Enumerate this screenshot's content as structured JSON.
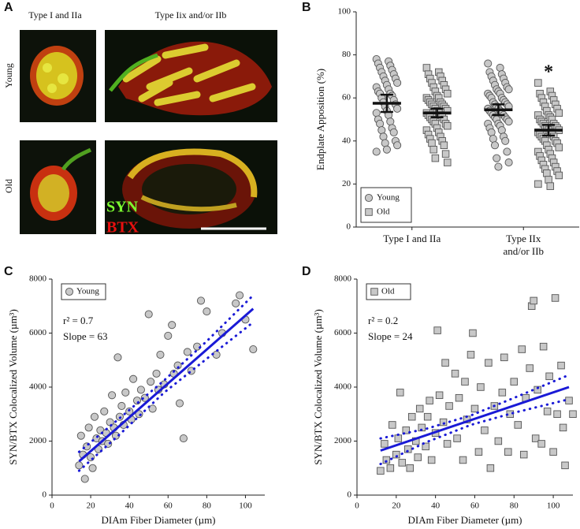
{
  "panel_a": {
    "label": "A",
    "column_titles": [
      "Type I and IIa",
      "Type Iix and/or IIb"
    ],
    "row_labels": [
      "Young",
      "Old"
    ],
    "stain_labels": [
      "SYN",
      "BTX"
    ]
  },
  "chart_data": [
    {
      "type": "strip",
      "panel_label": "B",
      "categories": [
        [
          "Type I and IIa"
        ],
        [
          "Type IIx",
          "and/or IIb"
        ]
      ],
      "ylabel": "Endplate Apposition (%)",
      "ylim": [
        0,
        100
      ],
      "yticks": [
        0,
        20,
        40,
        60,
        80,
        100
      ],
      "legend": "lower left",
      "series": [
        {
          "name": "Young",
          "marker": "circle",
          "color": "#c8c8c8",
          "values": [
            [
              78,
              77,
              76,
              75,
              74,
              73,
              72,
              71,
              70,
              69,
              68,
              67,
              66,
              65,
              64,
              63,
              62,
              62,
              61,
              60,
              59,
              58,
              57,
              56,
              55,
              54,
              53,
              52,
              50,
              49,
              48,
              46,
              45,
              44,
              42,
              40,
              39,
              38,
              36,
              35
            ],
            [
              76,
              74,
              72,
              71,
              70,
              69,
              68,
              67,
              66,
              65,
              64,
              64,
              63,
              62,
              62,
              61,
              60,
              60,
              59,
              58,
              58,
              57,
              57,
              56,
              56,
              55,
              55,
              54,
              54,
              53,
              53,
              52,
              52,
              51,
              51,
              50,
              50,
              49,
              48,
              48,
              47,
              46,
              45,
              44,
              42,
              41,
              40,
              38,
              35,
              32,
              30,
              28
            ]
          ],
          "mean": [
            57.5,
            54.5
          ],
          "error": [
            4,
            2.5
          ],
          "significance": [
            null,
            null
          ]
        },
        {
          "name": "Old",
          "marker": "square",
          "color": "#c8c8c8",
          "values": [
            [
              74,
              72,
              71,
              70,
              69,
              68,
              67,
              66,
              65,
              64,
              63,
              62,
              61,
              60,
              60,
              59,
              58,
              58,
              57,
              57,
              56,
              56,
              55,
              55,
              54,
              54,
              53,
              53,
              52,
              52,
              51,
              51,
              50,
              50,
              49,
              48,
              48,
              47,
              46,
              45,
              44,
              43,
              42,
              41,
              40,
              39,
              38,
              36,
              34,
              32,
              30
            ],
            [
              67,
              63,
              62,
              61,
              60,
              59,
              58,
              57,
              56,
              55,
              54,
              53,
              52,
              52,
              51,
              50,
              50,
              49,
              48,
              48,
              47,
              47,
              46,
              46,
              45,
              45,
              44,
              44,
              43,
              43,
              42,
              42,
              41,
              40,
              40,
              39,
              38,
              37,
              36,
              35,
              34,
              33,
              32,
              31,
              30,
              29,
              28,
              27,
              26,
              25,
              24,
              22,
              20,
              19
            ]
          ],
          "mean": [
            53,
            45
          ],
          "error": [
            2,
            2.5
          ],
          "significance": [
            null,
            "*"
          ]
        }
      ]
    },
    {
      "type": "scatter",
      "panel_label": "C",
      "xlabel": "DIAm Fiber Diameter (µm)",
      "ylabel": "SYN/BTX Colocalized Volume (µm³)",
      "xlim": [
        0,
        110
      ],
      "xticks": [
        0,
        20,
        40,
        60,
        80,
        100
      ],
      "ylim": [
        0,
        8000
      ],
      "yticks": [
        0,
        2000,
        4000,
        6000,
        8000
      ],
      "legend": "upper left",
      "annotations": [
        "r² = 0.7",
        "Slope = 63"
      ],
      "x": [
        14,
        15,
        16,
        17,
        18,
        19,
        20,
        21,
        22,
        23,
        24,
        25,
        26,
        27,
        28,
        29,
        30,
        31,
        32,
        33,
        34,
        35,
        36,
        37,
        38,
        40,
        41,
        42,
        44,
        45,
        46,
        48,
        50,
        51,
        52,
        54,
        55,
        56,
        58,
        60,
        62,
        63,
        65,
        66,
        68,
        70,
        72,
        75,
        77,
        80,
        85,
        88,
        95,
        97,
        100,
        104
      ],
      "series": [
        {
          "name": "Young",
          "marker": "circle",
          "color": "#c8c8c8",
          "values": [
            1100,
            2200,
            1500,
            600,
            1800,
            2500,
            1400,
            1000,
            2900,
            2100,
            1700,
            2400,
            2000,
            3100,
            2300,
            1900,
            2700,
            3700,
            2500,
            2200,
            5100,
            2900,
            3300,
            2600,
            3800,
            3100,
            2800,
            4300,
            3500,
            3000,
            3900,
            3600,
            6700,
            4200,
            3200,
            4500,
            3900,
            5200,
            4100,
            5900,
            6300,
            4500,
            4800,
            3400,
            2100,
            5300,
            4600,
            5500,
            7200,
            6800,
            5200,
            6000,
            7100,
            7400,
            6500,
            5400
          ]
        }
      ],
      "fit": {
        "color": "#1a1ad6",
        "x": [
          14,
          104
        ],
        "y": [
          1250,
          6900
        ]
      },
      "ci_upper": {
        "x": [
          14,
          35,
          58,
          80,
          104
        ],
        "y": [
          1600,
          2850,
          4250,
          5700,
          7400
        ]
      },
      "ci_lower": {
        "x": [
          14,
          35,
          58,
          80,
          104
        ],
        "y": [
          900,
          2250,
          3800,
          5050,
          6400
        ]
      }
    },
    {
      "type": "scatter",
      "panel_label": "D",
      "xlabel": "DIAm Fiber Diameter (µm)",
      "ylabel": "SYN/BTX Colocalized Volume (µm³)",
      "xlim": [
        0,
        110
      ],
      "xticks": [
        0,
        20,
        40,
        60,
        80,
        100
      ],
      "ylim": [
        0,
        8000
      ],
      "yticks": [
        0,
        2000,
        4000,
        6000,
        8000
      ],
      "legend": "upper left",
      "annotations": [
        "r² = 0.2",
        "Slope = 24"
      ],
      "x": [
        12,
        14,
        15,
        17,
        18,
        20,
        21,
        22,
        23,
        25,
        26,
        27,
        28,
        30,
        31,
        32,
        33,
        35,
        36,
        37,
        38,
        40,
        41,
        42,
        44,
        45,
        46,
        47,
        50,
        51,
        52,
        54,
        55,
        56,
        58,
        59,
        60,
        62,
        63,
        65,
        67,
        68,
        70,
        72,
        74,
        75,
        77,
        78,
        80,
        82,
        84,
        85,
        86,
        88,
        89,
        90,
        91,
        92,
        94,
        95,
        97,
        98,
        100,
        101,
        102,
        104,
        105,
        106,
        108,
        110
      ],
      "series": [
        {
          "name": "Old",
          "marker": "square",
          "color": "#c8c8c8",
          "values": [
            900,
            1900,
            1300,
            1000,
            2600,
            1500,
            2100,
            3800,
            1200,
            2400,
            1700,
            1000,
            2900,
            2000,
            1400,
            3200,
            2500,
            1800,
            2900,
            3500,
            1300,
            2300,
            6100,
            3700,
            2700,
            4900,
            1900,
            3300,
            4500,
            2100,
            3600,
            1300,
            4200,
            2800,
            5200,
            6000,
            3200,
            1600,
            4000,
            2400,
            4900,
            1000,
            3300,
            2000,
            3800,
            5100,
            1600,
            3000,
            4200,
            2600,
            5400,
            1500,
            3600,
            4700,
            7000,
            7200,
            2100,
            3900,
            1900,
            5500,
            3100,
            4400,
            1600,
            7300,
            3000,
            4800,
            2500,
            1100,
            3500,
            3000
          ]
        }
      ],
      "fit": {
        "color": "#1a1ad6",
        "x": [
          12,
          108
        ],
        "y": [
          1650,
          4000
        ]
      },
      "ci_upper": {
        "x": [
          12,
          35,
          58,
          80,
          108
        ],
        "y": [
          2100,
          2450,
          2950,
          3600,
          4450
        ]
      },
      "ci_lower": {
        "x": [
          12,
          35,
          58,
          80,
          108
        ],
        "y": [
          1150,
          1950,
          2600,
          3050,
          3550
        ]
      }
    }
  ]
}
